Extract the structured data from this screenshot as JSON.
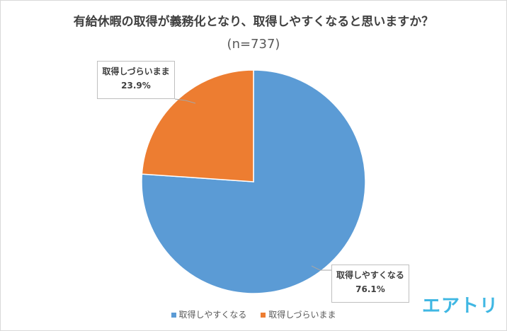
{
  "chart_data": {
    "type": "pie",
    "title": "有給休暇の取得が義務化となり、取得しやすくなると思いますか？",
    "subtitle": "(n=737)",
    "slices": [
      {
        "label": "取得しやすくなる",
        "value": 76.1,
        "display": "76.1%",
        "color": "#5b9bd5"
      },
      {
        "label": "取得しづらいまま",
        "value": 23.9,
        "display": "23.9%",
        "color": "#ed7d31"
      }
    ],
    "legend": {
      "position": "bottom"
    }
  },
  "brand": {
    "logo_text": "エアトリ"
  }
}
